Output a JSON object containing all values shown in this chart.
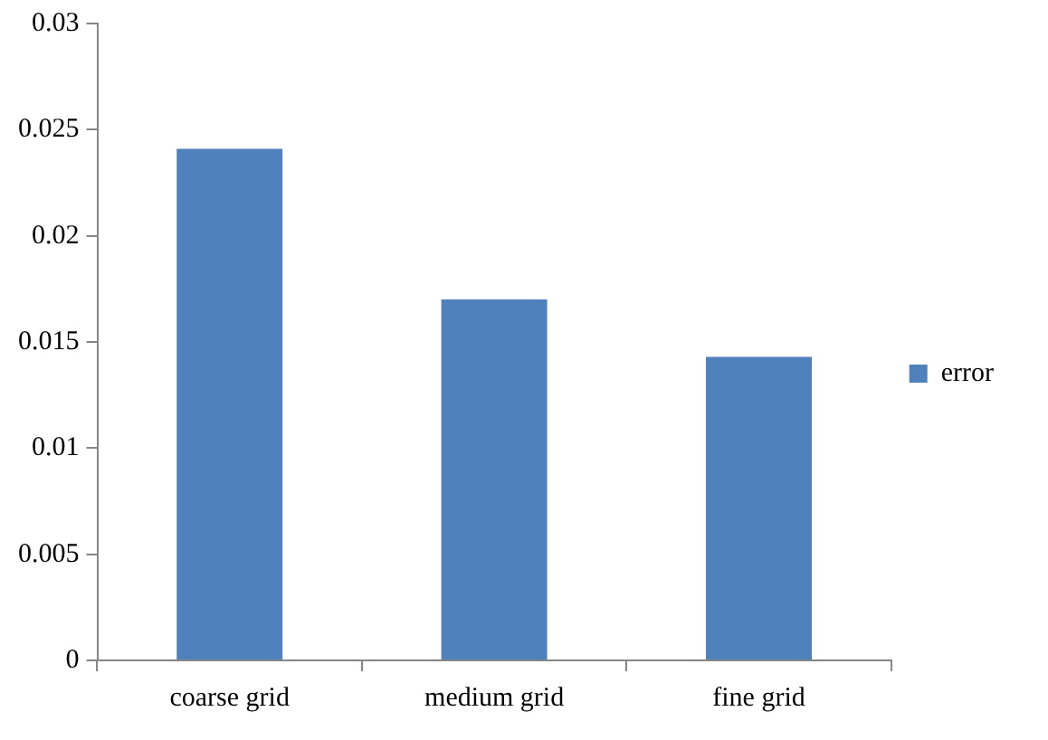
{
  "chart_data": {
    "type": "bar",
    "categories": [
      "coarse grid",
      "medium grid",
      "fine grid"
    ],
    "series": [
      {
        "name": "error",
        "color": "#4f81bd",
        "values": [
          0.0241,
          0.017,
          0.0143
        ]
      }
    ],
    "ylim": [
      0,
      0.03
    ],
    "yticks": [
      0,
      0.005,
      0.01,
      0.015,
      0.02,
      0.025,
      0.03
    ],
    "grid": false,
    "legend": "right"
  }
}
